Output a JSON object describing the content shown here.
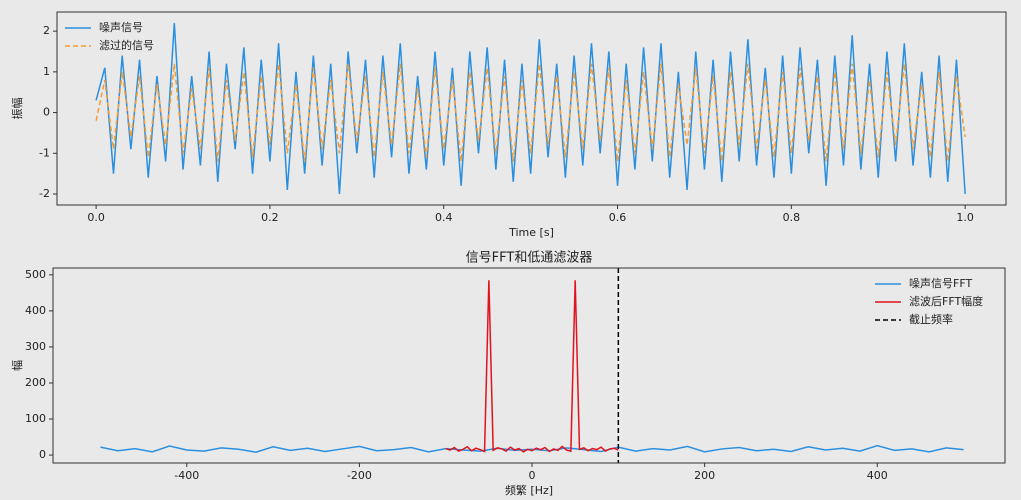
{
  "chart_data": [
    {
      "type": "line",
      "xlabel": "Time [s]",
      "ylabel": "振幅",
      "xlim": [
        -0.045,
        1.047
      ],
      "ylim": [
        -2.27,
        2.47
      ],
      "xticks": [
        {
          "value": 0,
          "label": "0.0"
        },
        0.2,
        0.4,
        0.6,
        0.8,
        {
          "value": 1,
          "label": "1.0"
        }
      ],
      "yticks": [
        -2,
        -1,
        0,
        1,
        2
      ],
      "legend": "upper left",
      "x": [
        0,
        0.01,
        0.02,
        0.03,
        0.04,
        0.05,
        0.06,
        0.07,
        0.08,
        0.09,
        0.1,
        0.11,
        0.12,
        0.13,
        0.14,
        0.15,
        0.16,
        0.17,
        0.18,
        0.19,
        0.2,
        0.21,
        0.22,
        0.23,
        0.24,
        0.25,
        0.26,
        0.27,
        0.28,
        0.29,
        0.3,
        0.31,
        0.32,
        0.33,
        0.34,
        0.35,
        0.36,
        0.37,
        0.38,
        0.39,
        0.4,
        0.41,
        0.42,
        0.43,
        0.44,
        0.45,
        0.46,
        0.47,
        0.48,
        0.49,
        0.5,
        0.51,
        0.52,
        0.53,
        0.54,
        0.55,
        0.56,
        0.57,
        0.58,
        0.59,
        0.6,
        0.61,
        0.62,
        0.63,
        0.64,
        0.65,
        0.66,
        0.67,
        0.68,
        0.69,
        0.7,
        0.71,
        0.72,
        0.73,
        0.74,
        0.75,
        0.76,
        0.77,
        0.78,
        0.79,
        0.8,
        0.81,
        0.82,
        0.83,
        0.84,
        0.85,
        0.86,
        0.87,
        0.88,
        0.89,
        0.9,
        0.91,
        0.92,
        0.93,
        0.94,
        0.95,
        0.96,
        0.97,
        0.98,
        0.99,
        1
      ],
      "series": [
        {
          "name": "噪声信号",
          "color": "#2b8fe0",
          "dash": false,
          "values": [
            0.3,
            1.1,
            -1.5,
            1.4,
            -0.9,
            1.3,
            -1.6,
            0.9,
            -1.2,
            2.2,
            -1.4,
            0.9,
            -1.3,
            1.5,
            -1.7,
            1.2,
            -0.9,
            1.6,
            -1.5,
            1.3,
            -1.2,
            1.7,
            -1.9,
            1.0,
            -1.5,
            1.4,
            -1.3,
            1.2,
            -2.0,
            1.5,
            -1.0,
            1.3,
            -1.6,
            1.4,
            -1.1,
            1.7,
            -1.5,
            0.9,
            -1.4,
            1.5,
            -1.3,
            1.1,
            -1.8,
            1.5,
            -1.0,
            1.6,
            -1.4,
            1.3,
            -1.7,
            1.2,
            -1.5,
            1.8,
            -1.1,
            1.2,
            -1.6,
            1.4,
            -1.3,
            1.7,
            -1.0,
            1.5,
            -1.8,
            1.2,
            -1.4,
            1.6,
            -1.2,
            1.7,
            -1.6,
            1.0,
            -1.9,
            1.5,
            -1.4,
            1.3,
            -1.7,
            1.5,
            -1.2,
            1.8,
            -1.3,
            1.1,
            -1.6,
            1.4,
            -1.5,
            1.6,
            -1.0,
            1.3,
            -1.8,
            1.4,
            -1.3,
            1.9,
            -1.4,
            1.2,
            -1.6,
            1.5,
            -1.2,
            1.7,
            -1.3,
            1.0,
            -1.6,
            1.4,
            -1.7,
            1.3,
            -2.0
          ]
        },
        {
          "name": "滤过的信号",
          "color": "#f39c34",
          "dash": true,
          "values": [
            -0.2,
            0.8,
            -0.9,
            1.0,
            -0.6,
            0.9,
            -1.1,
            0.7,
            -0.8,
            1.2,
            -1.0,
            0.6,
            -0.9,
            1.1,
            -1.2,
            0.8,
            -0.7,
            1.0,
            -1.1,
            0.9,
            -0.8,
            1.2,
            -1.0,
            0.7,
            -1.2,
            1.1,
            -0.9,
            0.8,
            -1.0,
            1.2,
            -0.7,
            0.9,
            -1.1,
            1.0,
            -0.8,
            1.2,
            -1.0,
            0.6,
            -1.1,
            1.1,
            -0.9,
            0.8,
            -1.2,
            1.0,
            -0.7,
            1.1,
            -1.0,
            0.9,
            -1.2,
            0.8,
            -1.0,
            1.2,
            -0.8,
            0.9,
            -1.1,
            1.0,
            -0.9,
            1.2,
            -0.7,
            1.1,
            -1.2,
            0.8,
            -1.0,
            1.0,
            -0.9,
            1.2,
            -1.1,
            0.7,
            -0.8,
            1.1,
            -1.0,
            0.9,
            -1.2,
            1.0,
            -0.8,
            1.2,
            -0.9,
            0.8,
            -1.1,
            1.0,
            -1.0,
            1.1,
            -0.7,
            0.9,
            -1.2,
            1.0,
            -0.9,
            1.2,
            -1.0,
            0.8,
            -1.1,
            1.0,
            -0.8,
            1.2,
            -0.9,
            0.7,
            -1.1,
            1.0,
            -1.2,
            0.9,
            -0.6
          ]
        }
      ]
    },
    {
      "type": "line",
      "title": "信号FFT和低通滤波器",
      "xlabel": "频繁 [Hz]",
      "ylabel": "幅",
      "xlim": [
        -555,
        548
      ],
      "ylim": [
        -22,
        519
      ],
      "xticks": [
        -400,
        -200,
        0,
        200,
        400
      ],
      "yticks": [
        0,
        100,
        200,
        300,
        400,
        500
      ],
      "legend": "upper right",
      "series": [
        {
          "name": "噪声信号FFT",
          "color": "#2b8fe0",
          "dash": false,
          "x": [
            -500,
            -480,
            -460,
            -440,
            -420,
            -400,
            -380,
            -360,
            -340,
            -320,
            -300,
            -280,
            -260,
            -240,
            -220,
            -200,
            -180,
            -160,
            -140,
            -120,
            -100,
            -80,
            -60,
            -40,
            -20,
            0,
            20,
            40,
            60,
            80,
            100,
            120,
            140,
            160,
            180,
            200,
            220,
            240,
            260,
            280,
            300,
            320,
            340,
            360,
            380,
            400,
            420,
            440,
            460,
            480,
            500
          ],
          "values": [
            22,
            12,
            18,
            9,
            25,
            14,
            11,
            20,
            16,
            8,
            23,
            13,
            19,
            10,
            17,
            24,
            12,
            15,
            21,
            9,
            18,
            14,
            11,
            19,
            13,
            16,
            12,
            20,
            15,
            10,
            22,
            11,
            18,
            14,
            24,
            9,
            17,
            21,
            12,
            16,
            10,
            23,
            14,
            19,
            11,
            26,
            13,
            17,
            9,
            20,
            15
          ]
        },
        {
          "name": "滤波后FFT幅度",
          "color": "#e0141e",
          "dash": false,
          "x": [
            -100,
            -95,
            -90,
            -85,
            -80,
            -75,
            -70,
            -65,
            -60,
            -55,
            -50,
            -45,
            -40,
            -35,
            -30,
            -25,
            -20,
            -15,
            -10,
            -5,
            0,
            5,
            10,
            15,
            20,
            25,
            30,
            35,
            40,
            45,
            50,
            55,
            60,
            65,
            70,
            75,
            80,
            85,
            90,
            95,
            100
          ],
          "values": [
            18,
            14,
            21,
            11,
            16,
            23,
            12,
            19,
            15,
            10,
            485,
            13,
            20,
            17,
            11,
            22,
            14,
            18,
            9,
            16,
            12,
            19,
            15,
            21,
            10,
            17,
            13,
            24,
            14,
            11,
            485,
            16,
            20,
            12,
            18,
            15,
            22,
            11,
            17,
            19,
            14
          ]
        }
      ],
      "vlines": [
        {
          "name": "截止频率",
          "x": 100,
          "color": "#000000"
        }
      ]
    }
  ]
}
